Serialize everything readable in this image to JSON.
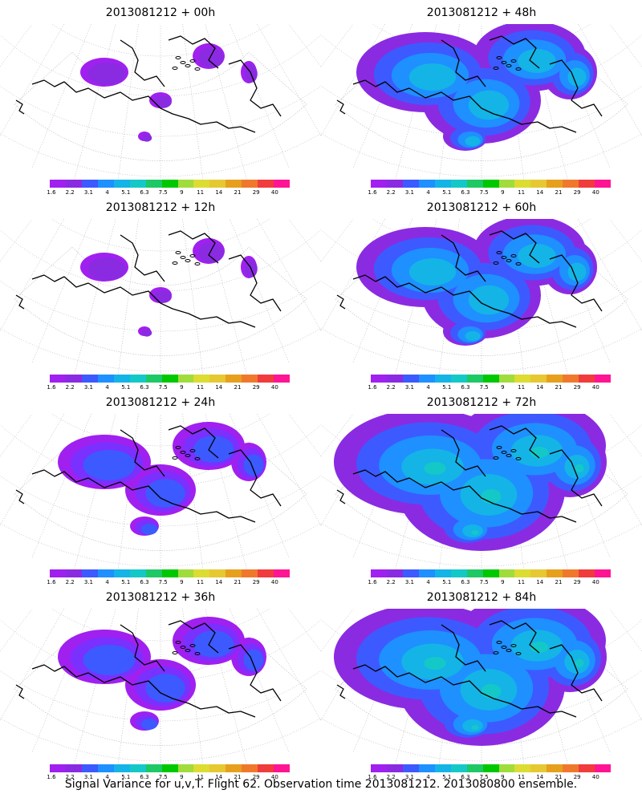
{
  "figure": {
    "footer": "Signal Variance for u,v,T. Flight 62. Observation time 2013081212. 2013080800 ensemble.",
    "colorbar": {
      "labels": [
        "1.6",
        "2.2",
        "3.1",
        "4",
        "5.1",
        "6.3",
        "7.5",
        "9",
        "11",
        "14",
        "21",
        "29",
        "40"
      ],
      "colors": [
        "#a020f0",
        "#8a2be2",
        "#3c5aff",
        "#1e90ff",
        "#14b4e6",
        "#14c8c8",
        "#1ec864",
        "#00c800",
        "#a0dc3c",
        "#dcdc32",
        "#e6c832",
        "#e6a01e",
        "#f0782d",
        "#f03c3c",
        "#ff1493"
      ]
    },
    "panels": [
      {
        "title": "2013081212 + 00h",
        "level": 0
      },
      {
        "title": "2013081212 + 48h",
        "level": 2
      },
      {
        "title": "2013081212 + 12h",
        "level": 0
      },
      {
        "title": "2013081212 + 60h",
        "level": 2
      },
      {
        "title": "2013081212 + 24h",
        "level": 1
      },
      {
        "title": "2013081212 + 72h",
        "level": 3
      },
      {
        "title": "2013081212 + 36h",
        "level": 1
      },
      {
        "title": "2013081212 + 84h",
        "level": 3
      }
    ]
  }
}
